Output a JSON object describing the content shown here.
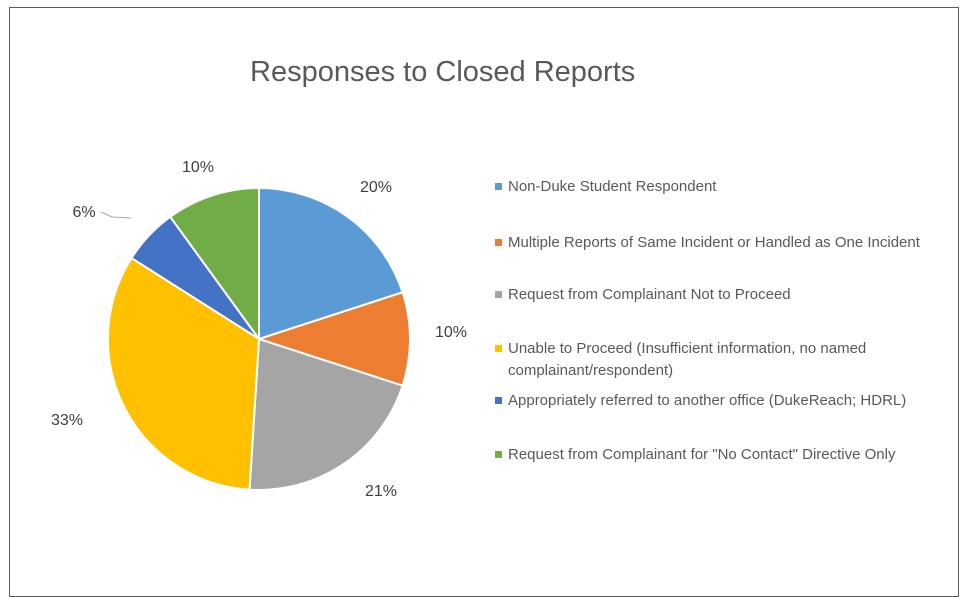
{
  "chart_data": {
    "type": "pie",
    "title": "Responses to Closed Reports",
    "slices": [
      {
        "label": "Non-Duke Student Respondent",
        "value": 20,
        "display": "20%",
        "color": "#5b9bd5"
      },
      {
        "label": "Multiple Reports of Same Incident or Handled as One Incident",
        "value": 10,
        "display": "10%",
        "color": "#ed7d31"
      },
      {
        "label": "Request from Complainant Not to Proceed",
        "value": 21,
        "display": "21%",
        "color": "#a5a5a5"
      },
      {
        "label": "Unable to Proceed (Insufficient information, no named complainant/respondent)",
        "value": 33,
        "display": "33%",
        "color": "#ffc000"
      },
      {
        "label": "Appropriately referred to another office (DukeReach; HDRL)",
        "value": 6,
        "display": "6%",
        "color": "#4472c4"
      },
      {
        "label": "Request from Complainant for \"No Contact\" Directive Only",
        "value": 10,
        "display": "10%",
        "color": "#70ad47"
      }
    ],
    "legend_position": "right"
  }
}
